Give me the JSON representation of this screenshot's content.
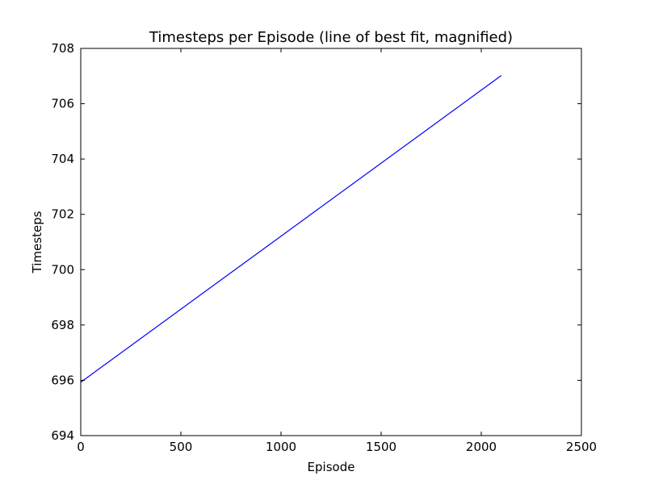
{
  "chart_data": {
    "type": "line",
    "title": "Timesteps per Episode (line of best fit, magnified)",
    "xlabel": "Episode",
    "ylabel": "Timesteps",
    "xlim": [
      0,
      2500
    ],
    "ylim": [
      694,
      708
    ],
    "xticks": [
      "0",
      "500",
      "1000",
      "1500",
      "2000",
      "2500"
    ],
    "yticks": [
      "694",
      "696",
      "698",
      "700",
      "702",
      "704",
      "706",
      "708"
    ],
    "grid": false,
    "legend": "none",
    "series": [
      {
        "color": "#0000ff",
        "x": [
          0,
          2100
        ],
        "y": [
          695.93,
          707.02
        ]
      }
    ]
  }
}
